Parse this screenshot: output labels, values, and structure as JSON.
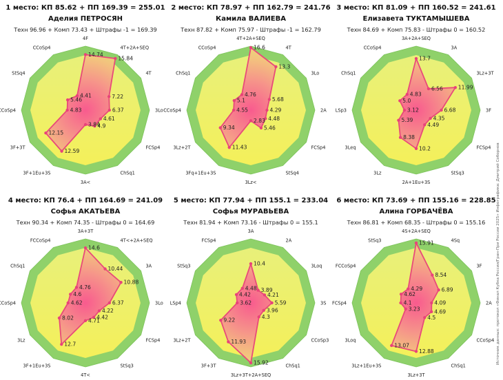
{
  "side_note": "Источник данных: протокол «Финал Кубка России/Гран-При России 2025» Инфографика: Дмитрий Соборнов",
  "colors": {
    "outer": "#8fd16a",
    "inner_center": "#f85b8e",
    "line": "#e84a7a",
    "dot": "#e8437a"
  },
  "chart_data": [
    {
      "type": "radar",
      "title": "1 место: КП 85.62 + ПП 169.39 = 255.01",
      "name": "Аделия ПЕТРОСЯН",
      "subtitle": "Техн 96.96 + Комп 73.43 + Штрафы -1 = 169.39",
      "axes": [
        "4F",
        "4T+2A+SEQ",
        "4T",
        "3Lo",
        "FCSp4",
        "ChSq1",
        "3A<",
        "3F+1Eu+3S",
        "3F+3T",
        "CCoSp4",
        "StSq4",
        "CCoSp4"
      ],
      "values": [
        14.74,
        15.84,
        7.22,
        6.37,
        4.61,
        4.9,
        3.84,
        12.59,
        12.15,
        4.83,
        5.46,
        4.41
      ],
      "labels": [
        "14.74",
        "15.84",
        "7.22",
        "6.37",
        "4.61",
        "4.9",
        "3.84",
        "12.59",
        "12.15",
        "4.83",
        "5.46",
        "4.41"
      ]
    },
    {
      "type": "radar",
      "title": "2 место: КП 78.97 + ПП 162.79 = 241.76",
      "name": "Камила ВАЛИЕВА",
      "subtitle": "Техн 87.82 + Комп 75.97 - Штрафы -1 = 162.79",
      "axes": [
        "4T+2A+SEQ",
        "4T",
        "3Lo",
        "2A",
        "FCSp4",
        "StSq4",
        "3Lz<",
        "3Fq+1Eu+3S",
        "3Lz+2T",
        "CCoSp4",
        "ChSq1",
        "CCoSp4"
      ],
      "values": [
        16.6,
        13.3,
        5.68,
        4.29,
        4.48,
        5.46,
        2.83,
        11.43,
        9.34,
        4.55,
        5.1,
        4.76
      ],
      "labels": [
        "16.6",
        "13.3",
        "5.68",
        "4.29",
        "4.48",
        "5.46",
        "2.83",
        "11.43",
        "9.34",
        "4.55",
        "5.1",
        "4.76"
      ]
    },
    {
      "type": "radar",
      "title": "3 место: КП 81.09 + ПП 160.52 = 241.61",
      "name": "Елизавета ТУКТАМЫШЕВА",
      "subtitle": "Техн 84.69 + Комп 75.83 - Штрафы 0 = 160.52",
      "axes": [
        "3A+2A+SEQ",
        "3A",
        "3Lz+3T",
        "3F",
        "FCSp4",
        "StSq3",
        "2A+1Eu+3S",
        "3Lz",
        "3Leq",
        "LSp3",
        "ChSq1",
        "CCoSp4"
      ],
      "values": [
        13.7,
        6.56,
        11.99,
        6.68,
        4.35,
        4.49,
        10.2,
        8.38,
        5.39,
        3.12,
        5.0,
        4.83
      ],
      "labels": [
        "13.7",
        "6.56",
        "11.99",
        "6.68",
        "4.35",
        "4.49",
        "10.2",
        "8.38",
        "5.39",
        "3.12",
        "5.0",
        "4.83"
      ]
    },
    {
      "type": "radar",
      "title": "4 место: КП 76.4 + ПП 164.69 = 241.09",
      "name": "Софья АКАТЬЕВА",
      "subtitle": "Техн 90.34 + Комп 74.35 - Штрафы 0 = 164.69",
      "axes": [
        "3A+3T",
        "4T<+2A+SEQ",
        "3A",
        "3Lo",
        "FCSp4",
        "StSq3",
        "4T<",
        "3F+1Eu+3S",
        "3Lz",
        "CCoSp4",
        "ChSq1",
        "FCCoSp4"
      ],
      "values": [
        14.6,
        10.44,
        10.88,
        6.37,
        4.22,
        4.42,
        4.71,
        12.7,
        8.02,
        4.62,
        4.6,
        4.76
      ],
      "labels": [
        "14.6",
        "10.44",
        "10.88",
        "6.37",
        "4.22",
        "4.42",
        "4.71",
        "12.7",
        "8.02",
        "4.62",
        "4.6",
        "4.76"
      ]
    },
    {
      "type": "radar",
      "title": "5 место: КП 77.94 + ПП 155.1 = 233.04",
      "name": "Софья МУРАВЬЕВА",
      "subtitle": "Техн 81.94 + Комп 73.16 - Штрафы 0 = 155.1",
      "axes": [
        "3A",
        "2A",
        "3Loq",
        "3S",
        "CCoSp3",
        "ChSq1",
        "3Lz+3T+2A+SEQ",
        "3F+3T",
        "3Lz+2T",
        "LSp4",
        "StSq3",
        "FCSp4"
      ],
      "values": [
        10.4,
        3.89,
        4.21,
        5.59,
        3.96,
        4.3,
        15.92,
        11.93,
        9.22,
        3.62,
        4.42,
        4.48
      ],
      "labels": [
        "10.4",
        "3.89",
        "4.21",
        "5.59",
        "3.96",
        "4.3",
        "15.92",
        "11.93",
        "9.22",
        "3.62",
        "4.42",
        "4.48"
      ]
    },
    {
      "type": "radar",
      "title": "6 место: КП 73.69 + ПП 155.16 = 228.85",
      "name": "Алина ГОРБАЧЁВА",
      "subtitle": "Техн 86.81 + Комп 68.35 - Штрафы 0 = 155.16",
      "axes": [
        "4S+2A+SEQ",
        "4Sq",
        "3F",
        "2A",
        "CCoSp4",
        "ChSq1",
        "3Lz+3T",
        "3Lz+1Eu+3S",
        "3Loq",
        "FCSp4",
        "FCCoSp4",
        "StSq3"
      ],
      "values": [
        15.91,
        8.54,
        6.89,
        4.09,
        4.69,
        4.5,
        12.88,
        13.07,
        3.23,
        4.1,
        4.62,
        4.29
      ],
      "labels": [
        "15.91",
        "8.54",
        "6.89",
        "4.09",
        "4.69",
        "4.5",
        "12.88",
        "13.07",
        "3.23",
        "4.1",
        "4.62",
        "4.29"
      ]
    }
  ]
}
